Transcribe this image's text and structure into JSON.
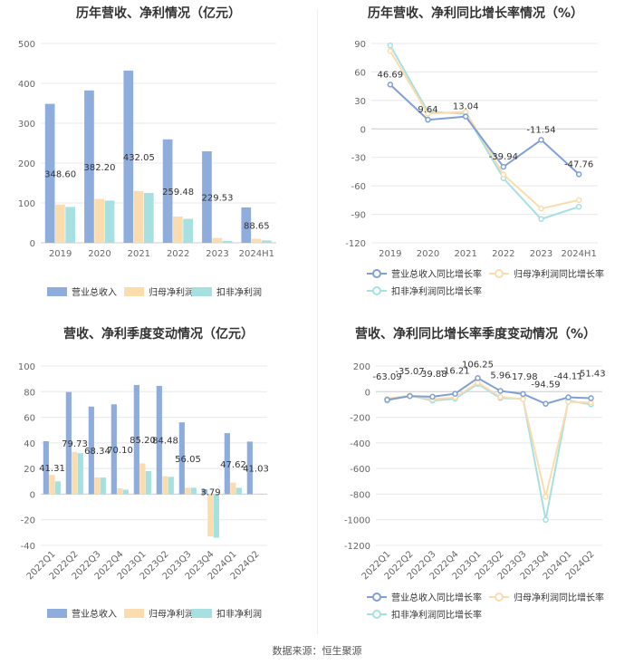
{
  "source": "数据来源：恒生聚源",
  "chart_data": [
    {
      "type": "bar",
      "title": "历年营收、净利情况（亿元）",
      "categories": [
        "2019",
        "2020",
        "2021",
        "2022",
        "2023",
        "2024H1"
      ],
      "ylim": [
        0,
        500
      ],
      "yticks": [
        0,
        100,
        200,
        300,
        400,
        500
      ],
      "series": [
        {
          "name": "营业总收入",
          "color": "#8eacdc",
          "values": [
            348.6,
            382.2,
            432.05,
            259.48,
            229.53,
            88.65
          ],
          "labels": [
            "348.60",
            "382.20",
            "432.05",
            "259.48",
            "229.53",
            "88.65"
          ]
        },
        {
          "name": "归母净利润",
          "color": "#fbdcae",
          "values": [
            96,
            110,
            130,
            66,
            12,
            10
          ]
        },
        {
          "name": "扣非净利润",
          "color": "#a6e0e0",
          "values": [
            90,
            106,
            125,
            60,
            5,
            6
          ]
        }
      ]
    },
    {
      "type": "line",
      "title": "历年营收、净利同比增长率情况（%）",
      "categories": [
        "2019",
        "2020",
        "2021",
        "2022",
        "2023",
        "2024H1"
      ],
      "ylim": [
        -120,
        90
      ],
      "yticks": [
        -120,
        -90,
        -60,
        -30,
        0,
        30,
        60,
        90
      ],
      "series": [
        {
          "name": "营业总收入同比增长率",
          "color": "#7f9fd6",
          "values": [
            46.69,
            9.64,
            13.04,
            -39.94,
            -11.54,
            -47.76
          ],
          "labels": [
            "46.69",
            "9.64",
            "13.04",
            "-39.94",
            "-11.54",
            "-47.76"
          ]
        },
        {
          "name": "归母净利润同比增长率",
          "color": "#fbdcae",
          "values": [
            82,
            16,
            18,
            -48,
            -84,
            -75
          ]
        },
        {
          "name": "扣非净利润同比增长率",
          "color": "#a6e0e0",
          "values": [
            88,
            18,
            16,
            -52,
            -95,
            -82
          ]
        }
      ]
    },
    {
      "type": "bar",
      "title": "营收、净利季度变动情况（亿元）",
      "categories": [
        "2022Q1",
        "2022Q2",
        "2022Q3",
        "2022Q4",
        "2023Q1",
        "2023Q2",
        "2023Q3",
        "2023Q4",
        "2024Q1",
        "2024Q2"
      ],
      "ylim": [
        -40,
        100
      ],
      "yticks": [
        -40,
        -20,
        0,
        20,
        40,
        60,
        80,
        100
      ],
      "series": [
        {
          "name": "营业总收入",
          "color": "#8eacdc",
          "values": [
            41.31,
            79.73,
            68.34,
            70.1,
            85.2,
            84.48,
            56.05,
            3.79,
            47.62,
            41.03
          ],
          "labels": [
            "41.31",
            "79.73",
            "68.34",
            "70.10",
            "85.20",
            "84.48",
            "56.05",
            "3.79",
            "47.62",
            "41.03"
          ]
        },
        {
          "name": "归母净利润",
          "color": "#fbdcae",
          "values": [
            15,
            33,
            13,
            4.5,
            24,
            14,
            5,
            -33,
            9,
            0
          ]
        },
        {
          "name": "扣非净利润",
          "color": "#a6e0e0",
          "values": [
            10,
            32,
            13,
            3.5,
            18,
            13.5,
            5,
            -34,
            5,
            0
          ]
        }
      ]
    },
    {
      "type": "line",
      "title": "营收、净利同比增长率季度变动情况（%）",
      "categories": [
        "2022Q1",
        "2022Q2",
        "2022Q3",
        "2022Q4",
        "2023Q1",
        "2023Q2",
        "2023Q3",
        "2023Q4",
        "2024Q1",
        "2024Q2"
      ],
      "ylim": [
        -1200,
        200
      ],
      "yticks": [
        -1200,
        -1000,
        -800,
        -600,
        -400,
        -200,
        0,
        200
      ],
      "series": [
        {
          "name": "营业总收入同比增长率",
          "color": "#7f9fd6",
          "values": [
            -63.09,
            -35.07,
            -39.88,
            -16.21,
            106.25,
            5.96,
            -17.98,
            -94.59,
            -44.11,
            -51.43
          ],
          "labels": [
            "-63.09",
            "-35.07",
            "-39.88",
            "-16.21",
            "106.25",
            "5.96",
            "-17.98",
            "-94.59",
            "-44.11",
            "-51.43"
          ]
        },
        {
          "name": "归母净利润同比增长率",
          "color": "#fbdcae",
          "values": [
            -55,
            -30,
            -60,
            -45,
            70,
            -40,
            -60,
            -820,
            -80,
            -85
          ]
        },
        {
          "name": "扣非净利润同比增长率",
          "color": "#a6e0e0",
          "values": [
            -70,
            -30,
            -70,
            -55,
            60,
            -50,
            -55,
            -1000,
            -70,
            -100
          ]
        }
      ]
    }
  ]
}
